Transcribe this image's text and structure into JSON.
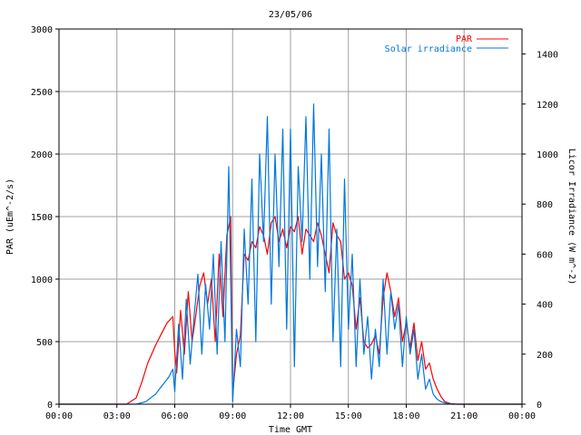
{
  "chart_data": {
    "type": "line",
    "title": "23/05/06",
    "xlabel": "Time GMT",
    "ylabel_left": "PAR (uEm^-2/s)",
    "ylabel_right": "Licor Irradiance (W m^-2)",
    "xlim": [
      0,
      24
    ],
    "ylim_left": [
      0,
      3000
    ],
    "ylim_right": [
      0,
      1500
    ],
    "grid": true,
    "legend_position": "top-right",
    "x_tick_labels": [
      "00:00",
      "03:00",
      "06:00",
      "09:00",
      "12:00",
      "15:00",
      "18:00",
      "21:00",
      "00:00"
    ],
    "y_left_tick_labels": [
      "0",
      "500",
      "1000",
      "1500",
      "2000",
      "2500",
      "3000"
    ],
    "y_right_tick_labels": [
      "0",
      "200",
      "400",
      "600",
      "800",
      "1000",
      "1200",
      "1400"
    ],
    "series": [
      {
        "name": "PAR",
        "axis": "left",
        "color": "#ff0000",
        "x": [
          0,
          3.5,
          4.0,
          4.3,
          4.6,
          5.0,
          5.3,
          5.6,
          5.9,
          6.0,
          6.1,
          6.3,
          6.5,
          6.7,
          6.9,
          7.1,
          7.3,
          7.5,
          7.7,
          7.9,
          8.1,
          8.3,
          8.5,
          8.7,
          8.9,
          9.0,
          9.2,
          9.4,
          9.6,
          9.8,
          10.0,
          10.2,
          10.4,
          10.6,
          10.8,
          11.0,
          11.2,
          11.4,
          11.6,
          11.8,
          12.0,
          12.2,
          12.4,
          12.6,
          12.8,
          13.0,
          13.2,
          13.4,
          13.6,
          13.8,
          14.0,
          14.2,
          14.4,
          14.6,
          14.8,
          15.0,
          15.2,
          15.4,
          15.6,
          15.8,
          16.0,
          16.2,
          16.4,
          16.6,
          16.8,
          17.0,
          17.2,
          17.4,
          17.6,
          17.8,
          18.0,
          18.2,
          18.4,
          18.6,
          18.8,
          19.0,
          19.2,
          19.4,
          19.6,
          19.8,
          20.0,
          20.3,
          20.6,
          21.0,
          24
        ],
        "y": [
          0,
          0,
          50,
          180,
          330,
          470,
          560,
          650,
          700,
          420,
          250,
          750,
          400,
          900,
          500,
          720,
          950,
          1050,
          800,
          1000,
          500,
          1200,
          700,
          1350,
          1500,
          80,
          400,
          550,
          1200,
          1150,
          1300,
          1250,
          1420,
          1350,
          1200,
          1450,
          1500,
          1300,
          1400,
          1250,
          1420,
          1380,
          1500,
          1200,
          1400,
          1350,
          1300,
          1450,
          1350,
          1200,
          1050,
          1450,
          1350,
          1300,
          1000,
          1050,
          950,
          600,
          850,
          500,
          450,
          480,
          550,
          400,
          850,
          1050,
          900,
          700,
          850,
          500,
          650,
          450,
          650,
          350,
          500,
          280,
          330,
          200,
          120,
          60,
          20,
          5,
          0,
          0,
          0
        ]
      },
      {
        "name": "Solar irradiance",
        "axis": "right",
        "color": "#0077dd",
        "x": [
          0,
          4.0,
          4.5,
          5.0,
          5.3,
          5.5,
          5.7,
          5.9,
          6.0,
          6.2,
          6.4,
          6.6,
          6.8,
          7.0,
          7.2,
          7.4,
          7.6,
          7.8,
          8.0,
          8.2,
          8.4,
          8.6,
          8.8,
          8.9,
          9.0,
          9.2,
          9.4,
          9.6,
          9.8,
          10.0,
          10.2,
          10.4,
          10.6,
          10.8,
          11.0,
          11.2,
          11.4,
          11.6,
          11.8,
          12.0,
          12.2,
          12.4,
          12.6,
          12.8,
          13.0,
          13.2,
          13.4,
          13.6,
          13.8,
          14.0,
          14.2,
          14.4,
          14.6,
          14.8,
          15.0,
          15.2,
          15.4,
          15.6,
          15.8,
          16.0,
          16.2,
          16.4,
          16.6,
          16.8,
          17.0,
          17.2,
          17.4,
          17.6,
          17.8,
          18.0,
          18.2,
          18.4,
          18.6,
          18.8,
          19.0,
          19.2,
          19.4,
          19.6,
          19.8,
          20.0,
          20.4,
          21.0,
          24
        ],
        "y": [
          0,
          0,
          10,
          40,
          70,
          90,
          110,
          140,
          50,
          320,
          100,
          420,
          160,
          350,
          520,
          200,
          480,
          300,
          600,
          200,
          650,
          250,
          950,
          500,
          10,
          300,
          150,
          700,
          400,
          900,
          250,
          1000,
          650,
          1150,
          400,
          1000,
          550,
          1100,
          300,
          1100,
          150,
          950,
          650,
          1150,
          500,
          1200,
          550,
          1000,
          450,
          1100,
          250,
          700,
          150,
          900,
          300,
          600,
          150,
          500,
          200,
          350,
          100,
          300,
          150,
          500,
          200,
          450,
          300,
          400,
          150,
          350,
          200,
          300,
          100,
          200,
          60,
          100,
          40,
          20,
          10,
          5,
          0,
          0,
          0
        ]
      }
    ]
  }
}
